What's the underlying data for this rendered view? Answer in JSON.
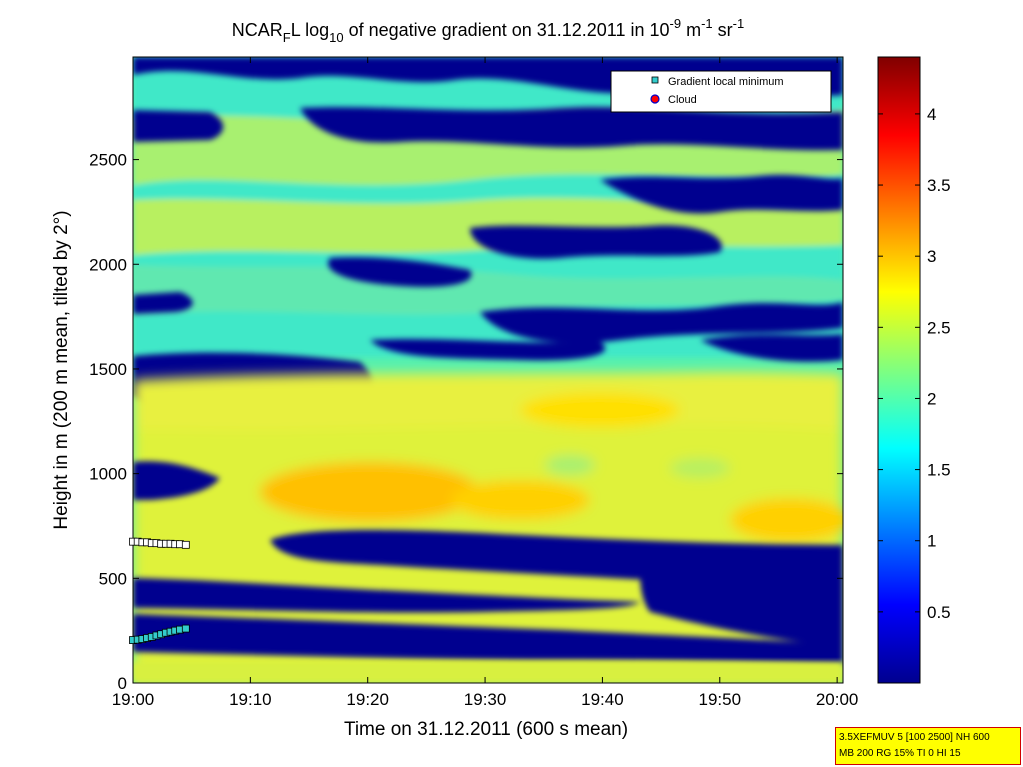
{
  "chart_data": {
    "type": "heatmap",
    "title": {
      "prefix": "NCAR",
      "prefix_sub": "F",
      "after_prefix": "L log",
      "log_sub": "10",
      "main": " of negative gradient on 31.12.2011 in 10",
      "exp1": "-9",
      "unit1": " m",
      "exp2": "-1",
      "unit2": " sr",
      "exp3": "-1"
    },
    "xlabel": "Time on 31.12.2011 (600 s mean)",
    "ylabel": "Height in m (200 m mean, tilted by 2°)",
    "x_ticks": [
      "19:00",
      "19:10",
      "19:20",
      "19:30",
      "19:40",
      "19:50",
      "20:00"
    ],
    "x_tick_minutes": [
      0,
      10,
      20,
      30,
      40,
      50,
      60
    ],
    "xlim_minutes": [
      0,
      60.5
    ],
    "y_ticks": [
      0,
      500,
      1000,
      1500,
      2000,
      2500
    ],
    "ylim": [
      0,
      2990
    ],
    "colorbar": {
      "ticks": [
        0.5,
        1,
        1.5,
        2,
        2.5,
        3,
        3.5,
        4
      ],
      "range": [
        0,
        4.4
      ],
      "colormap": "jet"
    },
    "legend": {
      "position": "top-right",
      "entries": [
        {
          "label": "Gradient local minimum",
          "marker": "square",
          "color": "#33cccc"
        },
        {
          "label": "Cloud",
          "marker": "circle",
          "color": "#ff0000",
          "edge": "#0000cc"
        }
      ]
    },
    "series": [
      {
        "name": "Gradient local minimum",
        "points_upper": [
          [
            0,
            675
          ],
          [
            0.4,
            675
          ],
          [
            0.8,
            672
          ],
          [
            1.2,
            672
          ],
          [
            1.6,
            668
          ],
          [
            2.0,
            668
          ],
          [
            2.4,
            665
          ],
          [
            2.8,
            665
          ],
          [
            3.2,
            665
          ],
          [
            3.6,
            663
          ],
          [
            4.0,
            663
          ],
          [
            4.5,
            660
          ]
        ],
        "points_lower": [
          [
            0,
            205
          ],
          [
            0.4,
            207
          ],
          [
            0.8,
            210
          ],
          [
            1.2,
            215
          ],
          [
            1.6,
            220
          ],
          [
            2.0,
            227
          ],
          [
            2.4,
            233
          ],
          [
            2.8,
            240
          ],
          [
            3.2,
            245
          ],
          [
            3.6,
            250
          ],
          [
            4.0,
            255
          ],
          [
            4.5,
            260
          ]
        ]
      }
    ],
    "field_bands": [
      {
        "name": "near-ground",
        "y": [
          0,
          60
        ],
        "value": 2.4
      },
      {
        "name": "low-layer-1",
        "y": [
          60,
          190
        ],
        "value": 0.0
      },
      {
        "name": "low-layer-2",
        "y": [
          300,
          430
        ],
        "value": 0.0
      },
      {
        "name": "inversion-gap",
        "y": [
          540,
          780
        ],
        "value": 0.0
      },
      {
        "name": "warm-core",
        "y": [
          820,
          990
        ],
        "value": 3.1
      },
      {
        "name": "upper-gap-1",
        "y": [
          1400,
          1550
        ],
        "value": 0.0
      },
      {
        "name": "upper-gap-2",
        "y": [
          1700,
          1830
        ],
        "value": 0.0
      },
      {
        "name": "upper-gap-3",
        "y": [
          2150,
          2270
        ],
        "value": 0.0
      },
      {
        "name": "upper-gap-4",
        "y": [
          2560,
          2700
        ],
        "value": 0.0
      },
      {
        "name": "top-gap",
        "y": [
          2800,
          2990
        ],
        "value": 0.0
      }
    ]
  },
  "infobox": {
    "line1": "3.5XEFMUV 5 [100 2500] NH 600",
    "line2": "MB 200 RG 15% TI 0 HI 15"
  }
}
